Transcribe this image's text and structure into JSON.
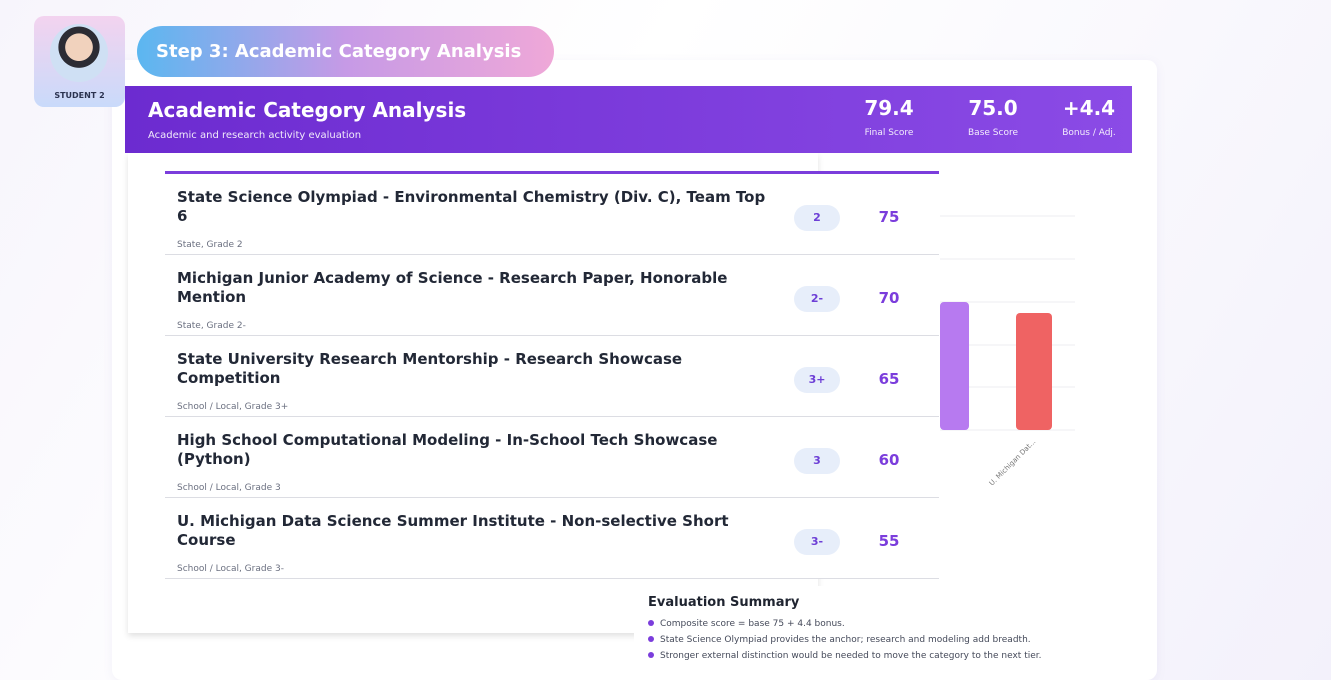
{
  "profile": {
    "label": "STUDENT 2"
  },
  "step": {
    "title": "Step 3: Academic Category Analysis"
  },
  "header": {
    "title": "Academic Category Analysis",
    "subtitle": "Academic and research activity evaluation",
    "scores": [
      {
        "value": "79.4",
        "label": "Final Score"
      },
      {
        "value": "75.0",
        "label": "Base Score"
      },
      {
        "value": "+4.4",
        "label": "Bonus / Adj."
      }
    ]
  },
  "activities": [
    {
      "title": "State Science Olympiad - Environmental Chemistry (Div. C), Team Top 6",
      "meta": "State, Grade 2",
      "grade": "2",
      "score": 75
    },
    {
      "title": "Michigan Junior Academy of Science - Research Paper, Honorable Mention",
      "meta": "State, Grade 2-",
      "grade": "2-",
      "score": 70
    },
    {
      "title": "State University Research Mentorship - Research Showcase Competition",
      "meta": "School / Local, Grade 3+",
      "grade": "3+",
      "score": 65
    },
    {
      "title": "High School Computational Modeling - In-School Tech Showcase (Python)",
      "meta": "School / Local, Grade 3",
      "grade": "3",
      "score": 60
    },
    {
      "title": "U. Michigan Data Science Summer Institute - Non-selective Short Course",
      "meta": "School / Local, Grade 3-",
      "grade": "3-",
      "score": 55
    }
  ],
  "chart_fragment": {
    "label": "U. Michigan Dat..."
  },
  "summary": {
    "title": "Evaluation Summary",
    "bullets": [
      "Composite score = base 75 + 4.4 bonus.",
      "State Science Olympiad provides the anchor; research and modeling add breadth.",
      "Stronger external distinction would be needed to move the category to the next tier."
    ]
  }
}
